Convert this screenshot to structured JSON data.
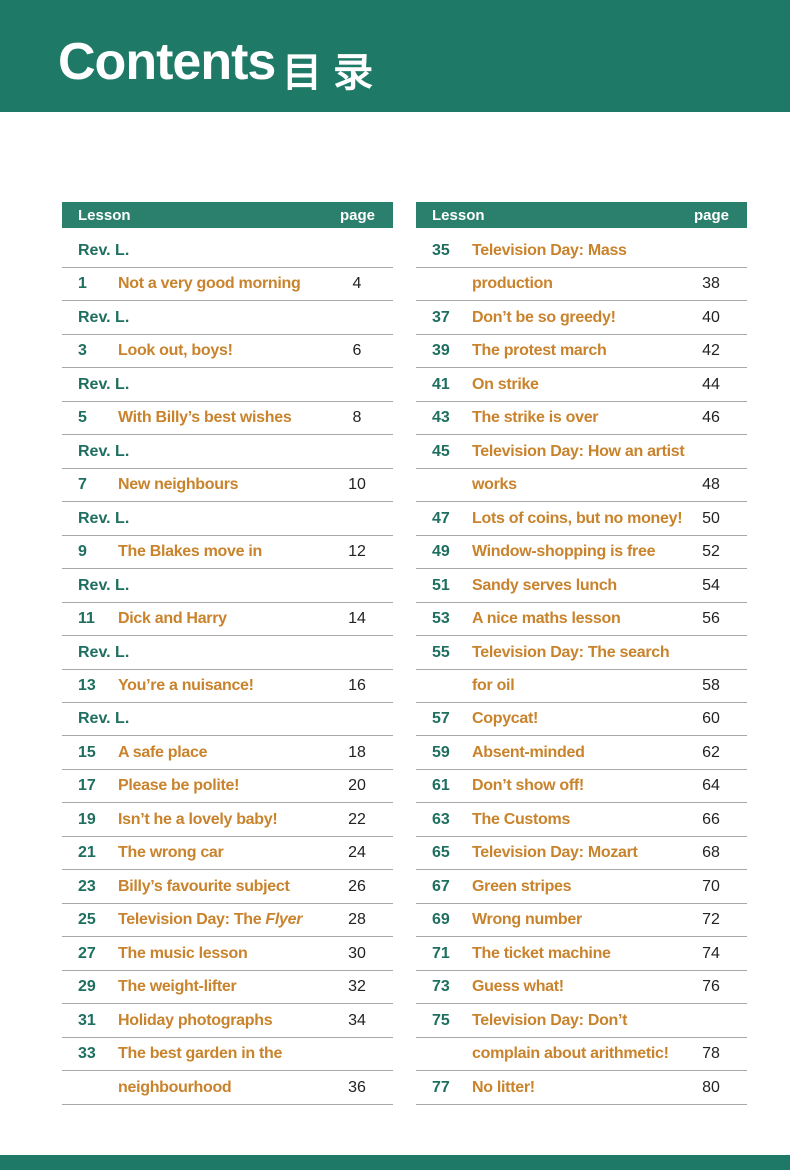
{
  "header": {
    "title": "Contents",
    "title_cn": "目 录"
  },
  "tables": [
    {
      "columns": [
        "Lesson",
        "page"
      ],
      "rows": [
        {
          "lesson": "Rev. L."
        },
        {
          "lesson": 1,
          "title": "Not a very good morning",
          "page": 4
        },
        {
          "lesson": "Rev. L."
        },
        {
          "lesson": 3,
          "title": "Look out, boys!",
          "page": 6
        },
        {
          "lesson": "Rev. L."
        },
        {
          "lesson": 5,
          "title": "With Billy’s best wishes",
          "page": 8
        },
        {
          "lesson": "Rev. L."
        },
        {
          "lesson": 7,
          "title": "New neighbours",
          "page": 10
        },
        {
          "lesson": "Rev. L."
        },
        {
          "lesson": 9,
          "title": "The Blakes move in",
          "page": 12
        },
        {
          "lesson": "Rev. L."
        },
        {
          "lesson": 11,
          "title": "Dick and Harry",
          "page": 14
        },
        {
          "lesson": "Rev. L."
        },
        {
          "lesson": 13,
          "title": "You’re a nuisance!",
          "page": 16
        },
        {
          "lesson": "Rev. L."
        },
        {
          "lesson": 15,
          "title": "A safe place",
          "page": 18
        },
        {
          "lesson": 17,
          "title": "Please be polite!",
          "page": 20
        },
        {
          "lesson": 19,
          "title": "Isn’t he a lovely baby!",
          "page": 22
        },
        {
          "lesson": 21,
          "title": "The wrong car",
          "page": 24
        },
        {
          "lesson": 23,
          "title": "Billy’s favourite subject",
          "page": 26
        },
        {
          "lesson": 25,
          "title": "Television Day: The",
          "title_italic": "Flyer",
          "page": 28
        },
        {
          "lesson": 27,
          "title": "The music lesson",
          "page": 30
        },
        {
          "lesson": 29,
          "title": "The weight-lifter",
          "page": 32
        },
        {
          "lesson": 31,
          "title": "Holiday photographs",
          "page": 34
        },
        {
          "lesson": 33,
          "title": "The best garden in the"
        },
        {
          "title": "neighbourhood",
          "page": 36
        }
      ]
    },
    {
      "columns": [
        "Lesson",
        "page"
      ],
      "rows": [
        {
          "lesson": 35,
          "title": "Television Day: Mass"
        },
        {
          "title": "production",
          "page": 38
        },
        {
          "lesson": 37,
          "title": "Don’t be so greedy!",
          "page": 40
        },
        {
          "lesson": 39,
          "title": "The protest march",
          "page": 42
        },
        {
          "lesson": 41,
          "title": "On strike",
          "page": 44
        },
        {
          "lesson": 43,
          "title": "The strike is over",
          "page": 46
        },
        {
          "lesson": 45,
          "title": "Television Day: How an artist"
        },
        {
          "title": "works",
          "page": 48
        },
        {
          "lesson": 47,
          "title": "Lots of coins, but no money!",
          "page": 50
        },
        {
          "lesson": 49,
          "title": "Window-shopping is free",
          "page": 52
        },
        {
          "lesson": 51,
          "title": "Sandy serves lunch",
          "page": 54
        },
        {
          "lesson": 53,
          "title": "A nice maths lesson",
          "page": 56
        },
        {
          "lesson": 55,
          "title": "Television Day: The search"
        },
        {
          "title": "for oil",
          "page": 58
        },
        {
          "lesson": 57,
          "title": "Copycat!",
          "page": 60
        },
        {
          "lesson": 59,
          "title": "Absent-minded",
          "page": 62
        },
        {
          "lesson": 61,
          "title": "Don’t show off!",
          "page": 64
        },
        {
          "lesson": 63,
          "title": "The Customs",
          "page": 66
        },
        {
          "lesson": 65,
          "title": "Television Day: Mozart",
          "page": 68
        },
        {
          "lesson": 67,
          "title": "Green stripes",
          "page": 70
        },
        {
          "lesson": 69,
          "title": "Wrong number",
          "page": 72
        },
        {
          "lesson": 71,
          "title": "The ticket machine",
          "page": 74
        },
        {
          "lesson": 73,
          "title": "Guess what!",
          "page": 76
        },
        {
          "lesson": 75,
          "title": "Television Day: Don’t"
        },
        {
          "title": "complain about arithmetic!",
          "page": 78
        },
        {
          "lesson": 77,
          "title": "No litter!",
          "page": 80
        }
      ]
    }
  ]
}
